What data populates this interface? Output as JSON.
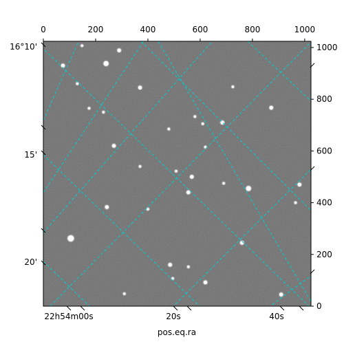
{
  "chart_data": {
    "type": "scatter",
    "title": "",
    "xlabel": "pos.eq.ra",
    "ylabel": "",
    "pixel_axes": {
      "x_ticks": [
        0,
        200,
        400,
        600,
        800,
        1000
      ],
      "y_ticks": [
        0,
        200,
        400,
        600,
        800,
        1000
      ],
      "xlim": [
        0,
        1024
      ],
      "ylim": [
        0,
        1024
      ]
    },
    "world_axes": {
      "ra_tick_labels": [
        "22h54m00s",
        "20s",
        "40s"
      ],
      "dec_tick_labels": [
        "16°10'",
        "15'",
        "20'"
      ]
    },
    "image": {
      "colormap": "gray",
      "background_level": "mid-gray"
    },
    "grid": {
      "on": true,
      "color": "#00CED1",
      "style": "dashed"
    },
    "stars": [
      {
        "x": 148,
        "y": 1007,
        "mag": 1
      },
      {
        "x": 290,
        "y": 989,
        "mag": 2
      },
      {
        "x": 240,
        "y": 938,
        "mag": 3
      },
      {
        "x": 75,
        "y": 930,
        "mag": 2
      },
      {
        "x": 130,
        "y": 860,
        "mag": 1
      },
      {
        "x": 370,
        "y": 845,
        "mag": 2
      },
      {
        "x": 725,
        "y": 848,
        "mag": 1
      },
      {
        "x": 872,
        "y": 767,
        "mag": 2
      },
      {
        "x": 175,
        "y": 765,
        "mag": 1
      },
      {
        "x": 230,
        "y": 750,
        "mag": 1
      },
      {
        "x": 580,
        "y": 733,
        "mag": 1
      },
      {
        "x": 685,
        "y": 710,
        "mag": 2
      },
      {
        "x": 610,
        "y": 705,
        "mag": 1
      },
      {
        "x": 480,
        "y": 685,
        "mag": 1
      },
      {
        "x": 270,
        "y": 620,
        "mag": 2
      },
      {
        "x": 620,
        "y": 615,
        "mag": 1
      },
      {
        "x": 980,
        "y": 470,
        "mag": 2
      },
      {
        "x": 568,
        "y": 500,
        "mag": 2
      },
      {
        "x": 508,
        "y": 522,
        "mag": 1
      },
      {
        "x": 690,
        "y": 475,
        "mag": 1
      },
      {
        "x": 785,
        "y": 455,
        "mag": 3
      },
      {
        "x": 555,
        "y": 440,
        "mag": 2
      },
      {
        "x": 243,
        "y": 383,
        "mag": 2
      },
      {
        "x": 400,
        "y": 375,
        "mag": 1
      },
      {
        "x": 105,
        "y": 262,
        "mag": 4
      },
      {
        "x": 760,
        "y": 245,
        "mag": 2
      },
      {
        "x": 485,
        "y": 160,
        "mag": 2
      },
      {
        "x": 910,
        "y": 45,
        "mag": 2
      },
      {
        "x": 620,
        "y": 92,
        "mag": 2
      },
      {
        "x": 495,
        "y": 107,
        "mag": 1
      },
      {
        "x": 555,
        "y": 152,
        "mag": 1
      },
      {
        "x": 310,
        "y": 48,
        "mag": 1
      },
      {
        "x": 965,
        "y": 400,
        "mag": 1
      },
      {
        "x": 370,
        "y": 540,
        "mag": 1
      }
    ]
  }
}
